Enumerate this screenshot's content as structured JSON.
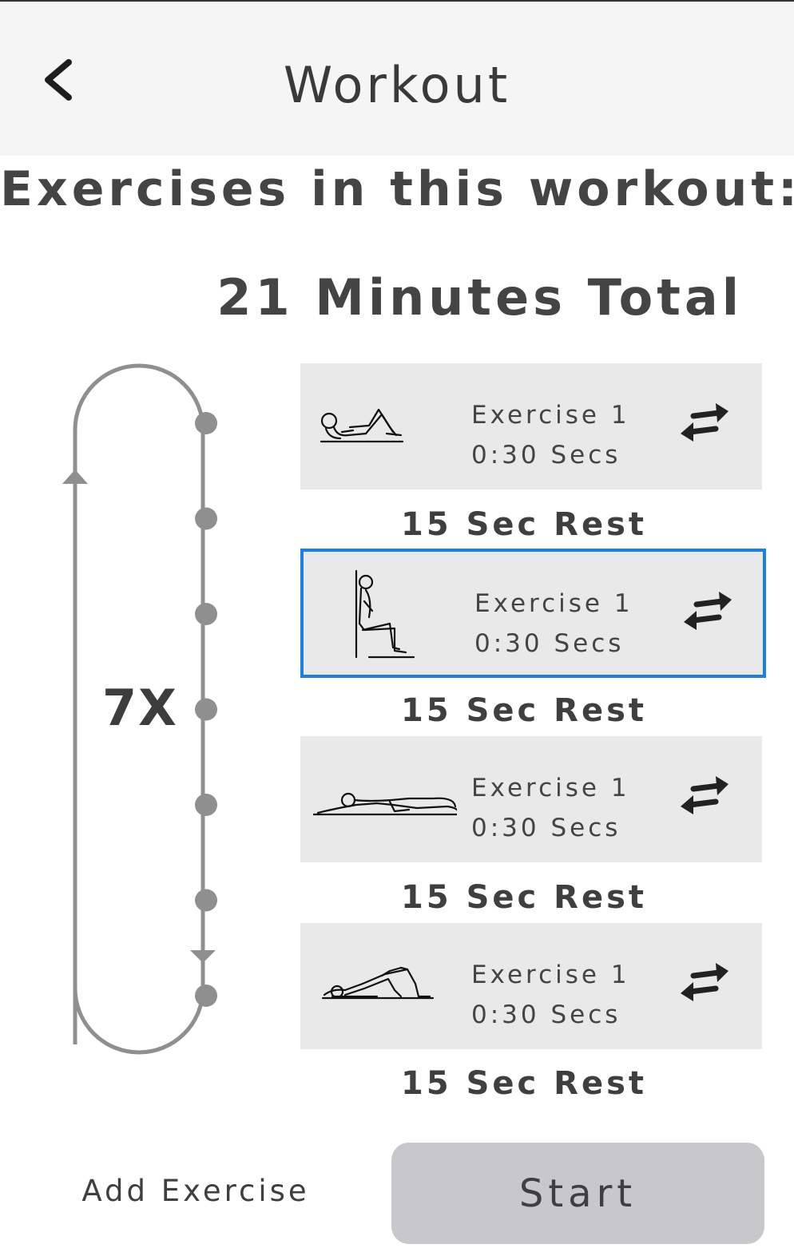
{
  "header": {
    "title": "Workout",
    "back_icon": "chevron-left-icon"
  },
  "heading": "Exercises in this workout:",
  "total": "21 Minutes Total",
  "loop": {
    "repeat_label": "7X",
    "steps": 7
  },
  "exercises": [
    {
      "name": "Exercise 1",
      "duration": "0:30 Secs",
      "icon": "crunch-figure-icon",
      "selected": false
    },
    {
      "name": "Exercise 1",
      "duration": "0:30 Secs",
      "icon": "wall-sit-figure-icon",
      "selected": true
    },
    {
      "name": "Exercise 1",
      "duration": "0:30 Secs",
      "icon": "lying-leg-raise-figure-icon",
      "selected": false
    },
    {
      "name": "Exercise 1",
      "duration": "0:30 Secs",
      "icon": "glute-bridge-figure-icon",
      "selected": false
    }
  ],
  "rests": [
    "15 Sec Rest",
    "15 Sec Rest",
    "15 Sec Rest",
    "15 Sec Rest"
  ],
  "footer": {
    "add_label": "Add Exercise",
    "start_label": "Start"
  },
  "colors": {
    "selected_border": "#1a7fe6",
    "card_bg": "#e9e9e9",
    "loop": "#8f8f8f",
    "button_bg": "#c8c8cc"
  }
}
